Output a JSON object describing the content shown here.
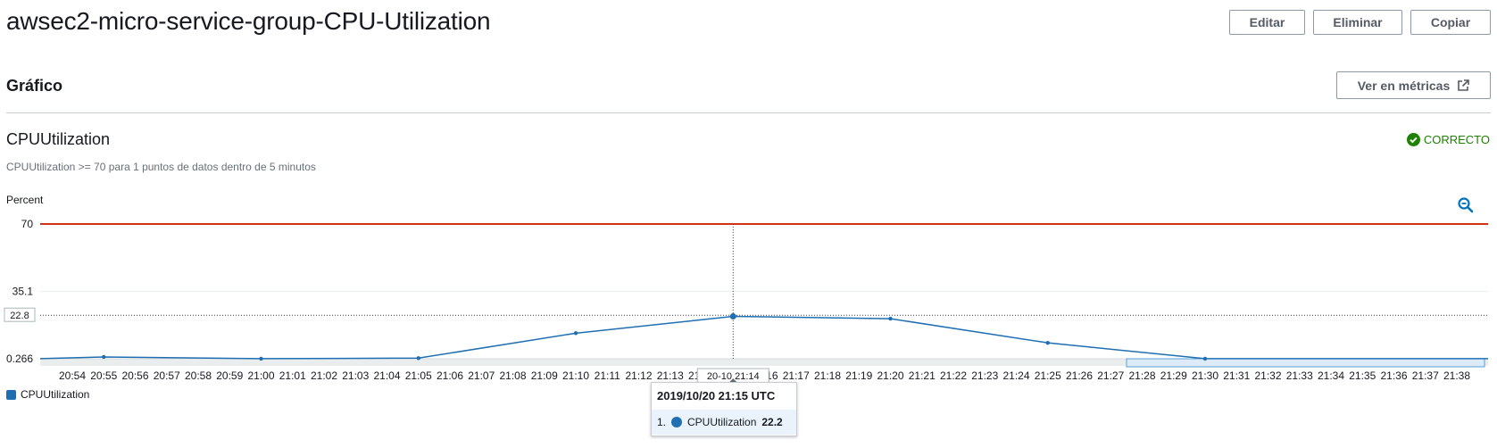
{
  "header": {
    "title": "awsec2-micro-service-group-CPU-Utilization"
  },
  "actions": {
    "edit_label": "Editar",
    "delete_label": "Eliminar",
    "copy_label": "Copiar"
  },
  "graph_section": {
    "title": "Gráfico",
    "metrics_button_label": "Ver en métricas"
  },
  "alarm": {
    "name": "CPUUtilization",
    "condition": "CPUUtilization >= 70 para 1 puntos de datos dentro de 5 minutos",
    "status": "CORRECTO",
    "status_icon": "check-circle-icon",
    "status_color": "#1d8102"
  },
  "chart_data": {
    "type": "line",
    "ylabel": "Percent",
    "y_ticks": [
      "70",
      "35.1",
      "0.266"
    ],
    "ylim": [
      0.266,
      70
    ],
    "threshold": {
      "value": 70,
      "color": "#d13212"
    },
    "crosshair": {
      "y_label": "22.8",
      "y_value": 22.8,
      "x_label": "20-10 21:14"
    },
    "x_ticks": [
      "20:54",
      "20:55",
      "20:56",
      "20:57",
      "20:58",
      "20:59",
      "21:00",
      "21:01",
      "21:02",
      "21:03",
      "21:04",
      "21:05",
      "21:06",
      "21:07",
      "21:08",
      "21:09",
      "21:10",
      "21:11",
      "21:12",
      "21:13",
      "21:14",
      "21:15",
      "21:16",
      "21:17",
      "21:18",
      "21:19",
      "21:20",
      "21:21",
      "21:22",
      "21:23",
      "21:24",
      "21:25",
      "21:26",
      "21:27",
      "21:28",
      "21:29",
      "21:30",
      "21:31",
      "21:32",
      "21:33",
      "21:34",
      "21:35",
      "21:36",
      "21:37",
      "21:38"
    ],
    "series": [
      {
        "name": "CPUUtilization",
        "color": "#1f6fb2",
        "points": [
          {
            "x": "20:53",
            "y": 0.3
          },
          {
            "x": "20:55",
            "y": 1.2
          },
          {
            "x": "21:00",
            "y": 0.3
          },
          {
            "x": "21:05",
            "y": 0.6
          },
          {
            "x": "21:10",
            "y": 13.5
          },
          {
            "x": "21:15",
            "y": 22.2
          },
          {
            "x": "21:20",
            "y": 21.0
          },
          {
            "x": "21:25",
            "y": 8.5
          },
          {
            "x": "21:30",
            "y": 0.3
          },
          {
            "x": "21:39",
            "y": 0.3
          }
        ]
      }
    ],
    "legend": "bottom-left"
  },
  "tooltip": {
    "datetime": "2019/10/20 21:15 UTC",
    "index": "1.",
    "series": "CPUUtilization",
    "value": "22.2"
  }
}
